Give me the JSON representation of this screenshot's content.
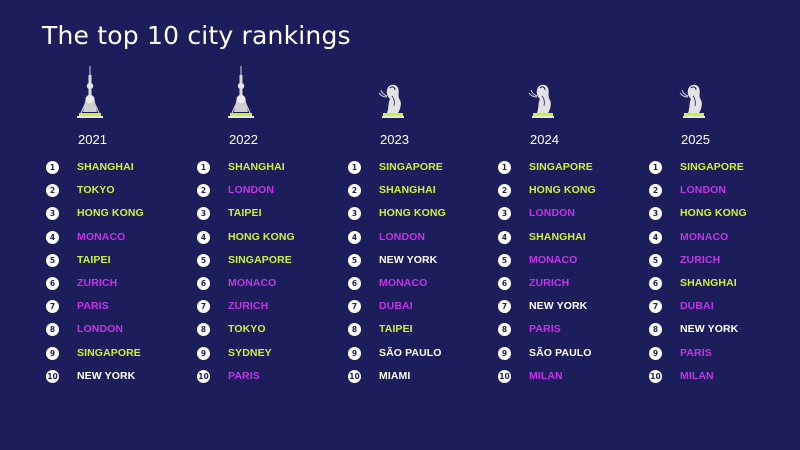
{
  "title": "The top 10 city rankings",
  "colors": {
    "background": "#1b1e5a",
    "green": "#c9f23e",
    "purple": "#c533e8",
    "white": "#ffffff"
  },
  "columns": [
    {
      "year": "2021",
      "icon": "tower-icon",
      "ranks": [
        {
          "rank": "1",
          "city": "SHANGHAI",
          "color": "green"
        },
        {
          "rank": "2",
          "city": "TOKYO",
          "color": "green"
        },
        {
          "rank": "3",
          "city": "HONG KONG",
          "color": "green"
        },
        {
          "rank": "4",
          "city": "MONACO",
          "color": "purple"
        },
        {
          "rank": "5",
          "city": "TAIPEI",
          "color": "green"
        },
        {
          "rank": "6",
          "city": "ZURICH",
          "color": "purple"
        },
        {
          "rank": "7",
          "city": "PARIS",
          "color": "purple"
        },
        {
          "rank": "8",
          "city": "LONDON",
          "color": "purple"
        },
        {
          "rank": "9",
          "city": "SINGAPORE",
          "color": "green"
        },
        {
          "rank": "10",
          "city": "NEW YORK",
          "color": "white"
        }
      ]
    },
    {
      "year": "2022",
      "icon": "tower-icon",
      "ranks": [
        {
          "rank": "1",
          "city": "SHANGHAI",
          "color": "green"
        },
        {
          "rank": "2",
          "city": "LONDON",
          "color": "purple"
        },
        {
          "rank": "3",
          "city": "TAIPEI",
          "color": "green"
        },
        {
          "rank": "4",
          "city": "HONG KONG",
          "color": "green"
        },
        {
          "rank": "5",
          "city": "SINGAPORE",
          "color": "green"
        },
        {
          "rank": "6",
          "city": "MONACO",
          "color": "purple"
        },
        {
          "rank": "7",
          "city": "ZURICH",
          "color": "purple"
        },
        {
          "rank": "8",
          "city": "TOKYO",
          "color": "green"
        },
        {
          "rank": "9",
          "city": "SYDNEY",
          "color": "green"
        },
        {
          "rank": "10",
          "city": "PARIS",
          "color": "purple"
        }
      ]
    },
    {
      "year": "2023",
      "icon": "merlion-icon",
      "ranks": [
        {
          "rank": "1",
          "city": "SINGAPORE",
          "color": "green"
        },
        {
          "rank": "2",
          "city": "SHANGHAI",
          "color": "green"
        },
        {
          "rank": "3",
          "city": "HONG KONG",
          "color": "green"
        },
        {
          "rank": "4",
          "city": "LONDON",
          "color": "purple"
        },
        {
          "rank": "5",
          "city": "NEW YORK",
          "color": "white"
        },
        {
          "rank": "6",
          "city": "MONACO",
          "color": "purple"
        },
        {
          "rank": "7",
          "city": "DUBAI",
          "color": "purple"
        },
        {
          "rank": "8",
          "city": "TAIPEI",
          "color": "green"
        },
        {
          "rank": "9",
          "city": "SÃO PAULO",
          "color": "white"
        },
        {
          "rank": "10",
          "city": "MIAMI",
          "color": "white"
        }
      ]
    },
    {
      "year": "2024",
      "icon": "merlion-icon",
      "ranks": [
        {
          "rank": "1",
          "city": "SINGAPORE",
          "color": "green"
        },
        {
          "rank": "2",
          "city": "HONG KONG",
          "color": "green"
        },
        {
          "rank": "3",
          "city": "LONDON",
          "color": "purple"
        },
        {
          "rank": "4",
          "city": "SHANGHAI",
          "color": "green"
        },
        {
          "rank": "5",
          "city": "MONACO",
          "color": "purple"
        },
        {
          "rank": "6",
          "city": "ZURICH",
          "color": "purple"
        },
        {
          "rank": "7",
          "city": "NEW YORK",
          "color": "white"
        },
        {
          "rank": "8",
          "city": "PARIS",
          "color": "purple"
        },
        {
          "rank": "9",
          "city": "SÃO PAULO",
          "color": "white"
        },
        {
          "rank": "10",
          "city": "MILAN",
          "color": "purple"
        }
      ]
    },
    {
      "year": "2025",
      "icon": "merlion-icon",
      "ranks": [
        {
          "rank": "1",
          "city": "SINGAPORE",
          "color": "green"
        },
        {
          "rank": "2",
          "city": "LONDON",
          "color": "purple"
        },
        {
          "rank": "3",
          "city": "HONG KONG",
          "color": "green"
        },
        {
          "rank": "4",
          "city": "MONACO",
          "color": "purple"
        },
        {
          "rank": "5",
          "city": "ZURICH",
          "color": "purple"
        },
        {
          "rank": "6",
          "city": "SHANGHAI",
          "color": "green"
        },
        {
          "rank": "7",
          "city": "DUBAI",
          "color": "purple"
        },
        {
          "rank": "8",
          "city": "NEW YORK",
          "color": "white"
        },
        {
          "rank": "9",
          "city": "PARIS",
          "color": "purple"
        },
        {
          "rank": "10",
          "city": "MILAN",
          "color": "purple"
        }
      ]
    }
  ]
}
